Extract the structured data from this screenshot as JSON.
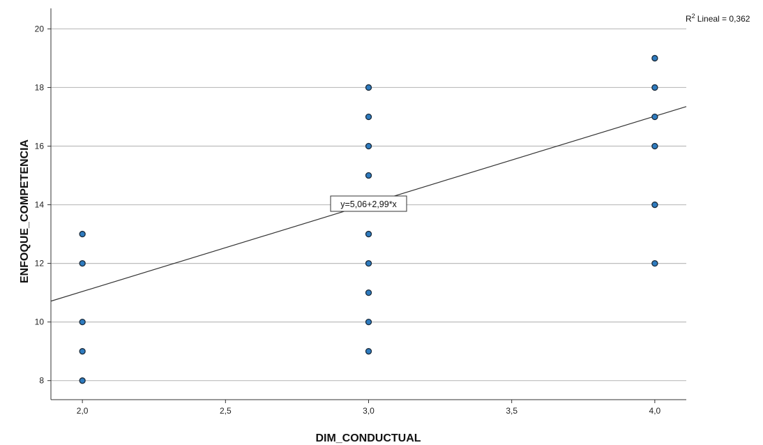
{
  "chart_data": {
    "type": "scatter",
    "xlabel": "DIM_CONDUCTUAL",
    "ylabel": "ENFOQUE_COMPETENCIA",
    "xlim": [
      1.89,
      4.11
    ],
    "ylim": [
      7.35,
      20.7
    ],
    "x_ticks": [
      2.0,
      2.5,
      3.0,
      3.5,
      4.0
    ],
    "x_tick_labels": [
      "2,0",
      "2,5",
      "3,0",
      "3,5",
      "4,0"
    ],
    "y_ticks": [
      8,
      10,
      12,
      14,
      16,
      18,
      20
    ],
    "y_tick_labels": [
      "8",
      "10",
      "12",
      "14",
      "16",
      "18",
      "20"
    ],
    "grid": "horizontal",
    "points": [
      {
        "x": 2.0,
        "y": 8
      },
      {
        "x": 2.0,
        "y": 9
      },
      {
        "x": 2.0,
        "y": 10
      },
      {
        "x": 2.0,
        "y": 12
      },
      {
        "x": 2.0,
        "y": 13
      },
      {
        "x": 3.0,
        "y": 9
      },
      {
        "x": 3.0,
        "y": 10
      },
      {
        "x": 3.0,
        "y": 11
      },
      {
        "x": 3.0,
        "y": 12
      },
      {
        "x": 3.0,
        "y": 13
      },
      {
        "x": 3.0,
        "y": 15
      },
      {
        "x": 3.0,
        "y": 16
      },
      {
        "x": 3.0,
        "y": 17
      },
      {
        "x": 3.0,
        "y": 18
      },
      {
        "x": 4.0,
        "y": 12
      },
      {
        "x": 4.0,
        "y": 14
      },
      {
        "x": 4.0,
        "y": 16
      },
      {
        "x": 4.0,
        "y": 17
      },
      {
        "x": 4.0,
        "y": 18
      },
      {
        "x": 4.0,
        "y": 19
      }
    ],
    "fit_line": {
      "intercept": 5.06,
      "slope": 2.99
    },
    "fit_equation": "y=5,06+2,99*x",
    "r2_label": "Lineal = 0,362",
    "r2_prefix": "R",
    "r2_superscript": "2",
    "colors": {
      "point_fill": "#2e7bbf",
      "point_stroke": "#1a2a3a",
      "fit_line": "#333333",
      "grid": "#bdbdbd",
      "axis": "#333333"
    }
  }
}
